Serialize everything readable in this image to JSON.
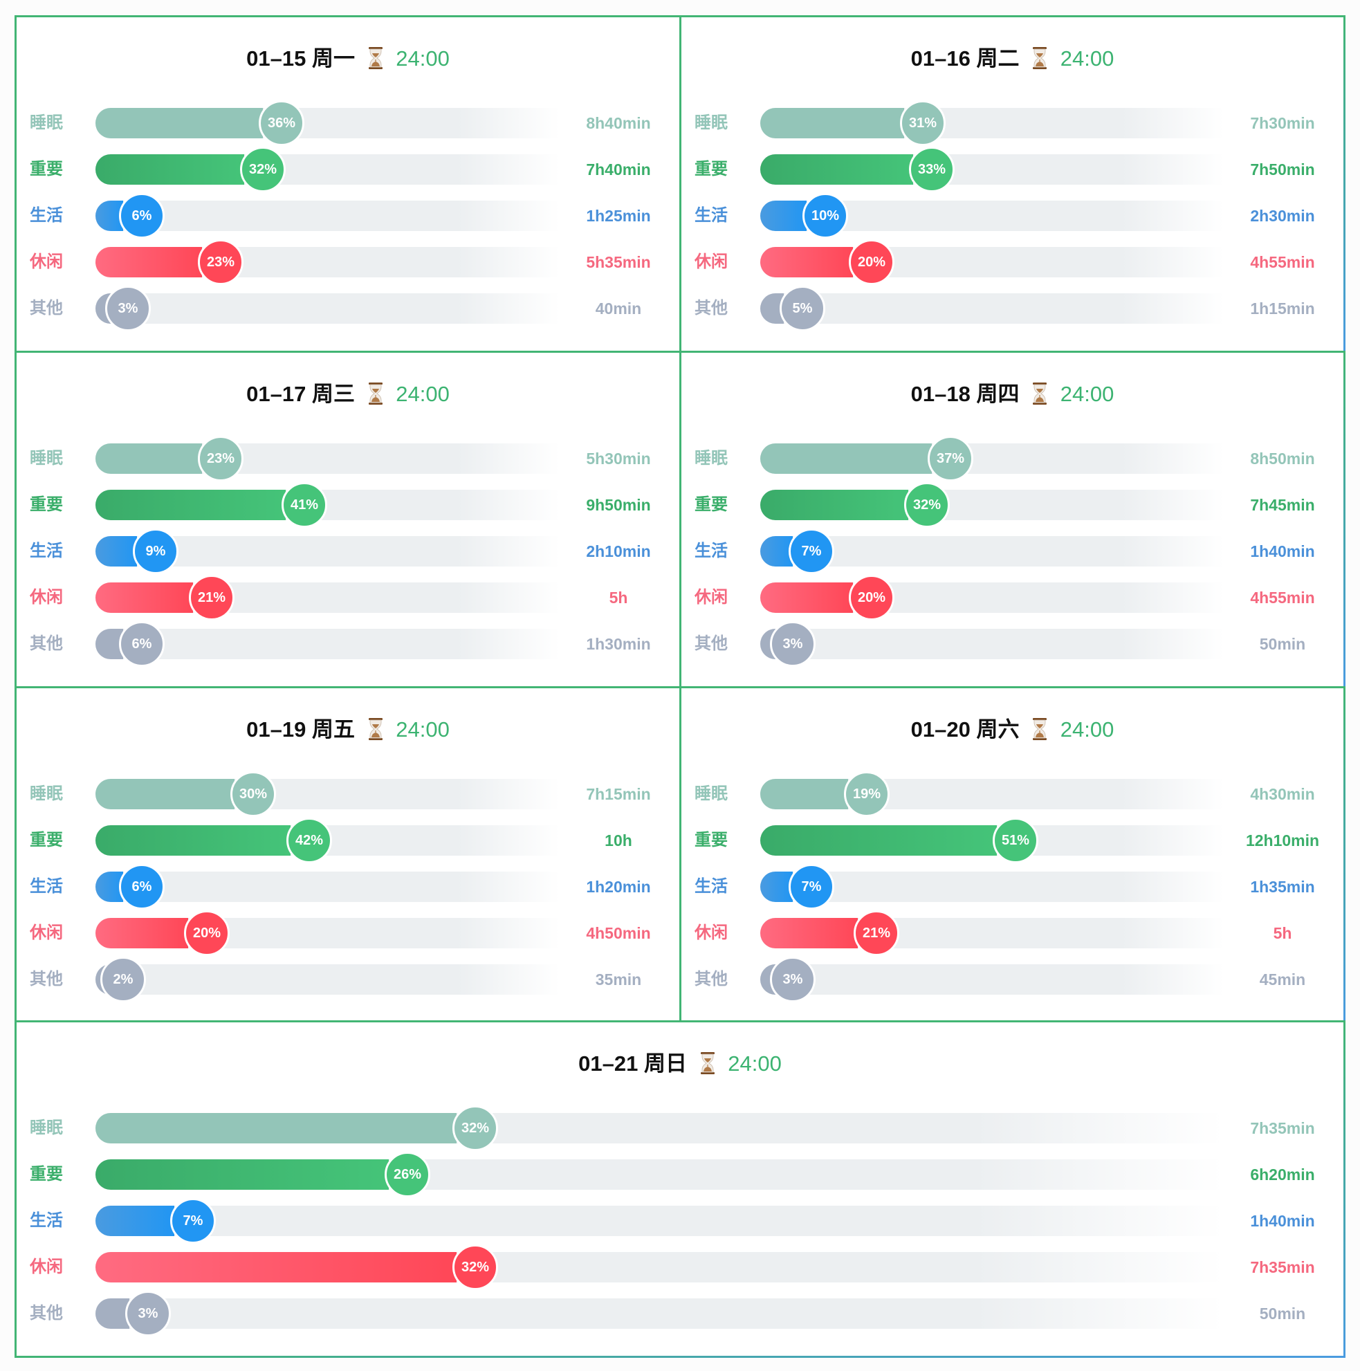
{
  "categories": [
    {
      "key": "sleep",
      "label": "睡眠",
      "color": "#93c5b8"
    },
    {
      "key": "important",
      "label": "重要",
      "color": "#45c479"
    },
    {
      "key": "life",
      "label": "生活",
      "color": "#2196f3"
    },
    {
      "key": "leisure",
      "label": "休闲",
      "color": "#ff4757"
    },
    {
      "key": "other",
      "label": "其他",
      "color": "#a4afc1"
    }
  ],
  "colors": {
    "border_green": "#42b574",
    "border_blue": "#4a9be0",
    "total_green": "#3cb371"
  },
  "hourglass_icon": "hourglass-icon",
  "days": [
    {
      "date": "01–15 周一",
      "total": "24:00",
      "items": [
        {
          "pct_label": "36%",
          "pct": 36,
          "duration": "8h40min"
        },
        {
          "pct_label": "32%",
          "pct": 32,
          "duration": "7h40min"
        },
        {
          "pct_label": "6%",
          "pct": 6,
          "duration": "1h25min"
        },
        {
          "pct_label": "23%",
          "pct": 23,
          "duration": "5h35min"
        },
        {
          "pct_label": "3%",
          "pct": 3,
          "duration": "40min"
        }
      ]
    },
    {
      "date": "01–16 周二",
      "total": "24:00",
      "items": [
        {
          "pct_label": "31%",
          "pct": 31,
          "duration": "7h30min"
        },
        {
          "pct_label": "33%",
          "pct": 33,
          "duration": "7h50min"
        },
        {
          "pct_label": "10%",
          "pct": 10,
          "duration": "2h30min"
        },
        {
          "pct_label": "20%",
          "pct": 20,
          "duration": "4h55min"
        },
        {
          "pct_label": "5%",
          "pct": 5,
          "duration": "1h15min"
        }
      ]
    },
    {
      "date": "01–17 周三",
      "total": "24:00",
      "items": [
        {
          "pct_label": "23%",
          "pct": 23,
          "duration": "5h30min"
        },
        {
          "pct_label": "41%",
          "pct": 41,
          "duration": "9h50min"
        },
        {
          "pct_label": "9%",
          "pct": 9,
          "duration": "2h10min"
        },
        {
          "pct_label": "21%",
          "pct": 21,
          "duration": "5h"
        },
        {
          "pct_label": "6%",
          "pct": 6,
          "duration": "1h30min"
        }
      ]
    },
    {
      "date": "01–18 周四",
      "total": "24:00",
      "items": [
        {
          "pct_label": "37%",
          "pct": 37,
          "duration": "8h50min"
        },
        {
          "pct_label": "32%",
          "pct": 32,
          "duration": "7h45min"
        },
        {
          "pct_label": "7%",
          "pct": 7,
          "duration": "1h40min"
        },
        {
          "pct_label": "20%",
          "pct": 20,
          "duration": "4h55min"
        },
        {
          "pct_label": "3%",
          "pct": 3,
          "duration": "50min"
        }
      ]
    },
    {
      "date": "01–19 周五",
      "total": "24:00",
      "items": [
        {
          "pct_label": "30%",
          "pct": 30,
          "duration": "7h15min"
        },
        {
          "pct_label": "42%",
          "pct": 42,
          "duration": "10h"
        },
        {
          "pct_label": "6%",
          "pct": 6,
          "duration": "1h20min"
        },
        {
          "pct_label": "20%",
          "pct": 20,
          "duration": "4h50min"
        },
        {
          "pct_label": "2%",
          "pct": 2,
          "duration": "35min"
        }
      ]
    },
    {
      "date": "01–20 周六",
      "total": "24:00",
      "items": [
        {
          "pct_label": "19%",
          "pct": 19,
          "duration": "4h30min"
        },
        {
          "pct_label": "51%",
          "pct": 51,
          "duration": "12h10min"
        },
        {
          "pct_label": "7%",
          "pct": 7,
          "duration": "1h35min"
        },
        {
          "pct_label": "21%",
          "pct": 21,
          "duration": "5h"
        },
        {
          "pct_label": "3%",
          "pct": 3,
          "duration": "45min"
        }
      ]
    },
    {
      "date": "01–21 周日",
      "total": "24:00",
      "items": [
        {
          "pct_label": "32%",
          "pct": 32,
          "duration": "7h35min"
        },
        {
          "pct_label": "26%",
          "pct": 26,
          "duration": "6h20min"
        },
        {
          "pct_label": "7%",
          "pct": 7,
          "duration": "1h40min"
        },
        {
          "pct_label": "32%",
          "pct": 32,
          "duration": "7h35min"
        },
        {
          "pct_label": "3%",
          "pct": 3,
          "duration": "50min"
        }
      ]
    }
  ],
  "chart_data": {
    "type": "bar",
    "orientation": "horizontal",
    "title": "",
    "categories": [
      "睡眠",
      "重要",
      "生活",
      "休闲",
      "其他"
    ],
    "series": [
      {
        "name": "01–15 周一",
        "total": "24:00",
        "values": [
          36,
          32,
          6,
          23,
          3
        ],
        "durations": [
          "8h40min",
          "7h40min",
          "1h25min",
          "5h35min",
          "40min"
        ]
      },
      {
        "name": "01–16 周二",
        "total": "24:00",
        "values": [
          31,
          33,
          10,
          20,
          5
        ],
        "durations": [
          "7h30min",
          "7h50min",
          "2h30min",
          "4h55min",
          "1h15min"
        ]
      },
      {
        "name": "01–17 周三",
        "total": "24:00",
        "values": [
          23,
          41,
          9,
          21,
          6
        ],
        "durations": [
          "5h30min",
          "9h50min",
          "2h10min",
          "5h",
          "1h30min"
        ]
      },
      {
        "name": "01–18 周四",
        "total": "24:00",
        "values": [
          37,
          32,
          7,
          20,
          3
        ],
        "durations": [
          "8h50min",
          "7h45min",
          "1h40min",
          "4h55min",
          "50min"
        ]
      },
      {
        "name": "01–19 周五",
        "total": "24:00",
        "values": [
          30,
          42,
          6,
          20,
          2
        ],
        "durations": [
          "7h15min",
          "10h",
          "1h20min",
          "4h50min",
          "35min"
        ]
      },
      {
        "name": "01–20 周六",
        "total": "24:00",
        "values": [
          19,
          51,
          7,
          21,
          3
        ],
        "durations": [
          "4h30min",
          "12h10min",
          "1h35min",
          "5h",
          "45min"
        ]
      },
      {
        "name": "01–21 周日",
        "total": "24:00",
        "values": [
          32,
          26,
          7,
          32,
          3
        ],
        "durations": [
          "7h35min",
          "6h20min",
          "1h40min",
          "7h35min",
          "50min"
        ]
      }
    ],
    "xlabel": "",
    "ylabel": "",
    "xlim": [
      0,
      100
    ],
    "unit": "%",
    "grid": false,
    "legend": "none"
  }
}
